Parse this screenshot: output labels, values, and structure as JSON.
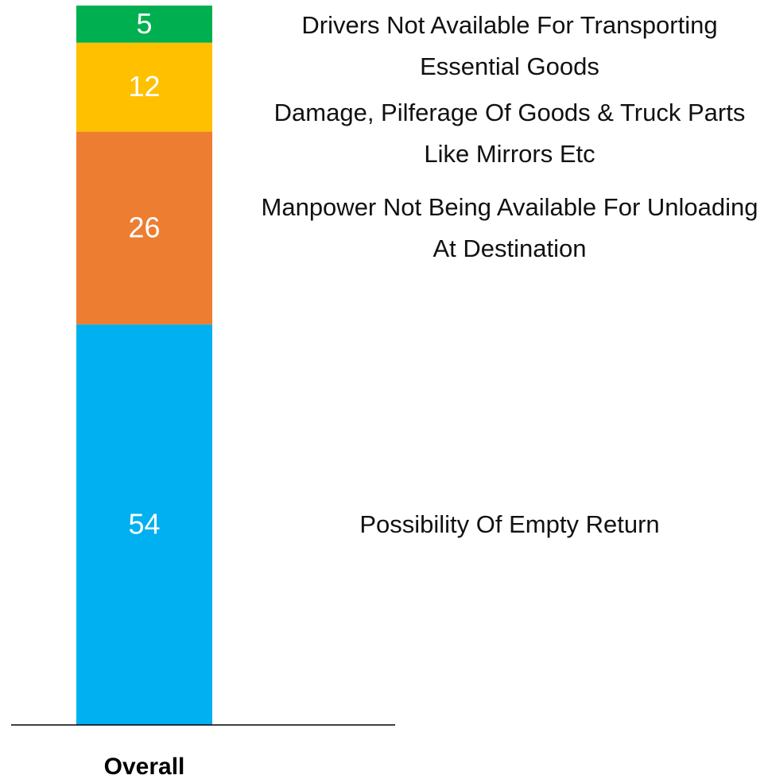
{
  "chart_data": {
    "type": "stacked-bar",
    "categories": [
      "Overall"
    ],
    "series": [
      {
        "name": "Possibility Of Empty Return",
        "color": "#00b0f0",
        "values": [
          54
        ]
      },
      {
        "name": "Manpower Not Being Available For Unloading At Destination",
        "color": "#ed7d31",
        "values": [
          26
        ]
      },
      {
        "name": "Damage, Pilferage Of Goods & Truck Parts Like Mirrors Etc",
        "color": "#ffc000",
        "values": [
          12
        ]
      },
      {
        "name": "Drivers Not Available For Transporting Essential Goods",
        "color": "#00b050",
        "values": [
          5
        ]
      }
    ]
  }
}
